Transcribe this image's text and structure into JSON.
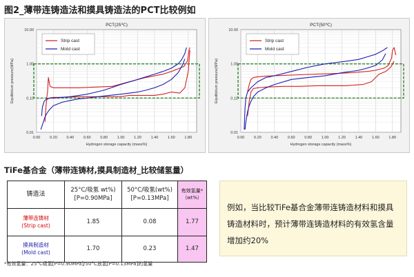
{
  "figure_title": "图2_薄带连铸造法和摸具铸造法的PCT比较例如",
  "section_title": "TiFe基合金（薄带连铸材,摸具制造材_比较储氢量）",
  "chart_data": [
    {
      "type": "line",
      "title": "PCT(25℃)",
      "xlabel": "Hydrogen storage capacity (mass%)",
      "ylabel": "Equilibrium pressure(MPa)",
      "xlim": [
        0,
        1.9
      ],
      "xticks": [
        "0.00",
        "0.20",
        "0.40",
        "0.60",
        "0.80",
        "1.00",
        "1.20",
        "1.40",
        "1.60",
        "1.80"
      ],
      "ylim": [
        0.01,
        10
      ],
      "yscale": "log",
      "yticks": [
        "0.01",
        "0.10",
        "1.00",
        "10.00"
      ],
      "grid": true,
      "legend_position": "top-left",
      "series": [
        {
          "name": "Strip cast",
          "color": "#d42020",
          "x": [
            0.12,
            0.13,
            0.14,
            0.16,
            0.2,
            0.3,
            0.5,
            0.7,
            0.9,
            1.1,
            1.3,
            1.5,
            1.6,
            1.7,
            1.75,
            1.79,
            1.81,
            1.82
          ],
          "y": [
            0.1,
            0.15,
            0.4,
            0.22,
            0.2,
            0.2,
            0.2,
            0.21,
            0.22,
            0.3,
            0.4,
            0.5,
            0.6,
            0.75,
            0.85,
            1.2,
            2.5,
            3.0
          ]
        },
        {
          "name": "Strip cast",
          "color": "#d42020",
          "x": [
            1.82,
            1.8,
            1.76,
            1.7,
            1.6,
            1.5,
            1.4,
            1.3,
            1.2,
            1.1,
            1.0,
            0.9,
            0.7,
            0.5,
            0.3,
            0.2,
            0.15,
            0.12,
            0.11,
            0.1
          ],
          "y": [
            2.5,
            0.6,
            0.2,
            0.14,
            0.15,
            0.13,
            0.12,
            0.12,
            0.12,
            0.12,
            0.11,
            0.11,
            0.11,
            0.11,
            0.105,
            0.105,
            0.1,
            0.09,
            0.05,
            0.02
          ]
        },
        {
          "name": "Mold cast",
          "color": "#1c1cb0",
          "x": [
            0.06,
            0.07,
            0.09,
            0.12,
            0.16,
            0.2,
            0.3,
            0.4,
            0.6,
            0.8,
            1.0,
            1.2,
            1.4,
            1.5,
            1.6,
            1.68,
            1.72,
            1.76,
            1.78
          ],
          "y": [
            0.03,
            0.055,
            0.08,
            0.095,
            0.1,
            0.1,
            0.105,
            0.11,
            0.13,
            0.17,
            0.25,
            0.35,
            0.5,
            0.6,
            0.75,
            1.0,
            1.3,
            2.0,
            3.0
          ]
        },
        {
          "name": "Mold cast",
          "color": "#1c1cb0",
          "x": [
            1.76,
            1.73,
            1.68,
            1.6,
            1.5,
            1.4,
            1.3,
            1.2,
            1.0,
            0.8,
            0.6,
            0.5,
            0.4,
            0.3,
            0.2,
            0.15,
            0.12,
            0.1,
            0.08,
            0.06,
            0.05
          ],
          "y": [
            1.4,
            0.9,
            0.55,
            0.35,
            0.25,
            0.2,
            0.17,
            0.15,
            0.13,
            0.115,
            0.1,
            0.095,
            0.085,
            0.075,
            0.06,
            0.045,
            0.035,
            0.028,
            0.02,
            0.014,
            0.012
          ]
        }
      ],
      "legend": [
        {
          "label": "Strip cast",
          "color": "#d42020"
        },
        {
          "label": "Mold cast",
          "color": "#1c1cb0"
        }
      ],
      "highlight_band": {
        "y_range": [
          0.1,
          1.0
        ],
        "color": "#2a8a2a"
      }
    },
    {
      "type": "line",
      "title": "PCT(50℃)",
      "xlabel": "Hydrogen storage capacity (mass%)",
      "ylabel": "Equilibrium pressure(MPa)",
      "xlim": [
        0,
        1.9
      ],
      "xticks": [
        "0.00",
        "0.20",
        "0.40",
        "0.60",
        "0.80",
        "1.00",
        "1.20",
        "1.40",
        "1.60",
        "1.80"
      ],
      "ylim": [
        0.01,
        10
      ],
      "yscale": "log",
      "yticks": [
        "0.01",
        "0.10",
        "1.00",
        "10.00"
      ],
      "grid": true,
      "legend_position": "top-left",
      "series": [
        {
          "name": "Strip cast",
          "color": "#d42020",
          "x": [
            0.08,
            0.1,
            0.12,
            0.15,
            0.2,
            0.3,
            0.5,
            0.7,
            0.9,
            1.1,
            1.3,
            1.5,
            1.6,
            1.7,
            1.75,
            1.79,
            1.8,
            1.82,
            1.84
          ],
          "y": [
            0.15,
            0.25,
            0.35,
            0.4,
            0.42,
            0.44,
            0.46,
            0.48,
            0.5,
            0.52,
            0.55,
            0.6,
            0.65,
            0.75,
            0.9,
            1.5,
            2.5,
            3.0,
            1.8
          ]
        },
        {
          "name": "Strip cast",
          "color": "#d42020",
          "x": [
            1.82,
            1.78,
            1.72,
            1.64,
            1.55,
            1.45,
            1.35,
            1.25,
            1.1,
            0.9,
            0.7,
            0.5,
            0.3,
            0.2,
            0.15,
            0.12,
            0.1,
            0.08
          ],
          "y": [
            1.2,
            0.8,
            0.6,
            0.5,
            0.3,
            0.25,
            0.24,
            0.23,
            0.23,
            0.23,
            0.22,
            0.22,
            0.21,
            0.2,
            0.19,
            0.15,
            0.08,
            0.03
          ]
        },
        {
          "name": "Mold cast",
          "color": "#1c1cb0",
          "x": [
            0.04,
            0.05,
            0.06,
            0.08,
            0.12,
            0.2,
            0.3,
            0.4,
            0.6,
            0.8,
            1.0,
            1.2,
            1.4,
            1.5,
            1.6,
            1.68,
            1.72,
            1.74
          ],
          "y": [
            0.012,
            0.05,
            0.1,
            0.15,
            0.2,
            0.3,
            0.4,
            0.45,
            0.6,
            0.8,
            1.0,
            1.15,
            1.35,
            1.6,
            1.9,
            2.4,
            2.8,
            3.0
          ]
        },
        {
          "name": "Mold cast",
          "color": "#1c1cb0",
          "x": [
            1.72,
            1.68,
            1.6,
            1.5,
            1.4,
            1.2,
            1.0,
            0.8,
            0.6,
            0.4,
            0.3,
            0.2,
            0.15,
            0.12,
            0.1,
            0.08,
            0.06,
            0.05
          ],
          "y": [
            2.0,
            1.3,
            0.9,
            0.75,
            0.65,
            0.55,
            0.45,
            0.4,
            0.35,
            0.25,
            0.2,
            0.15,
            0.11,
            0.08,
            0.06,
            0.04,
            0.02,
            0.012
          ]
        }
      ],
      "legend": [
        {
          "label": "Strip cast",
          "color": "#d42020"
        },
        {
          "label": "Mold cast",
          "color": "#1c1cb0"
        }
      ],
      "highlight_band": {
        "y_range": [
          0.1,
          1.0
        ],
        "color": "#2a8a2a"
      }
    }
  ],
  "table": {
    "headers": [
      "铸造法",
      "25°C/吸氢 wt%)\n[P=0.90MPa]",
      "50°C/吸氢(wt%)\n[P=0.13MPa]",
      "有效氢量*\n（wt%）"
    ],
    "rows": [
      {
        "name": "薄带连铸材\n(Strip cast)",
        "name_color": "#d40000",
        "v25": "1.85",
        "v50": "0.08",
        "effective": "1.77"
      },
      {
        "name": "摸具制造材\n(Mold cast)",
        "name_color": "#1c1ca8",
        "v25": "1.70",
        "v50": "0.23",
        "effective": "1.47"
      }
    ]
  },
  "footnote": "*有效氢量：25°C吸氢[P=0.90MPa]/50°C放氢[P=0.13MPa]的氢量",
  "note": "例如，当比较TiFe基合金薄带连铸造材料和摸具铸造材料时，预计薄带连铸造材料的有效氢含量增加约20%"
}
